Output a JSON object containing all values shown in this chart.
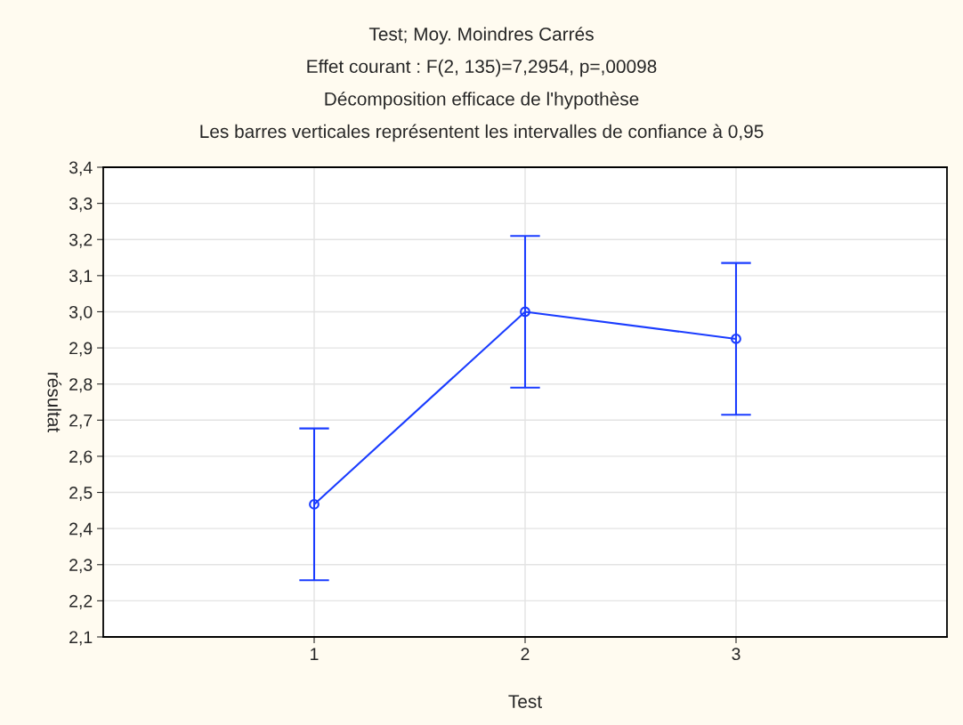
{
  "chart_data": {
    "type": "line",
    "title": "Test; Moy. Moindres Carrés",
    "subtitle": "Effet courant : F(2, 135)=7,2954, p=,00098\nDécomposition efficace de l'hypothèse\nLes barres verticales représentent les intervalles de confiance à 0,95",
    "xlabel": "Test",
    "ylabel": "résultat",
    "x": [
      1,
      2,
      3
    ],
    "series": [
      {
        "color": "#1a3cff",
        "values": [
          2.467,
          3.0,
          2.925
        ],
        "errors": [
          0.21,
          0.21,
          0.21
        ]
      }
    ],
    "xlim": [
      0,
      4
    ],
    "xticks": [
      1,
      2,
      3
    ],
    "ylim": [
      2.1,
      3.4
    ],
    "yticks": [
      {
        "value": 2.1,
        "label": "2,1"
      },
      {
        "value": 2.2,
        "label": "2,2"
      },
      {
        "value": 2.3,
        "label": "2,3"
      },
      {
        "value": 2.4,
        "label": "2,4"
      },
      {
        "value": 2.5,
        "label": "2,5"
      },
      {
        "value": 2.6,
        "label": "2,6"
      },
      {
        "value": 2.7,
        "label": "2,7"
      },
      {
        "value": 2.8,
        "label": "2,8"
      },
      {
        "value": 2.9,
        "label": "2,9"
      },
      {
        "value": 3.0,
        "label": "3,0"
      },
      {
        "value": 3.1,
        "label": "3,1"
      },
      {
        "value": 3.2,
        "label": "3,2"
      },
      {
        "value": 3.3,
        "label": "3,3"
      },
      {
        "value": 3.4,
        "label": "3,4"
      }
    ],
    "grid": true,
    "marker": "circle",
    "line_style": "solid"
  }
}
